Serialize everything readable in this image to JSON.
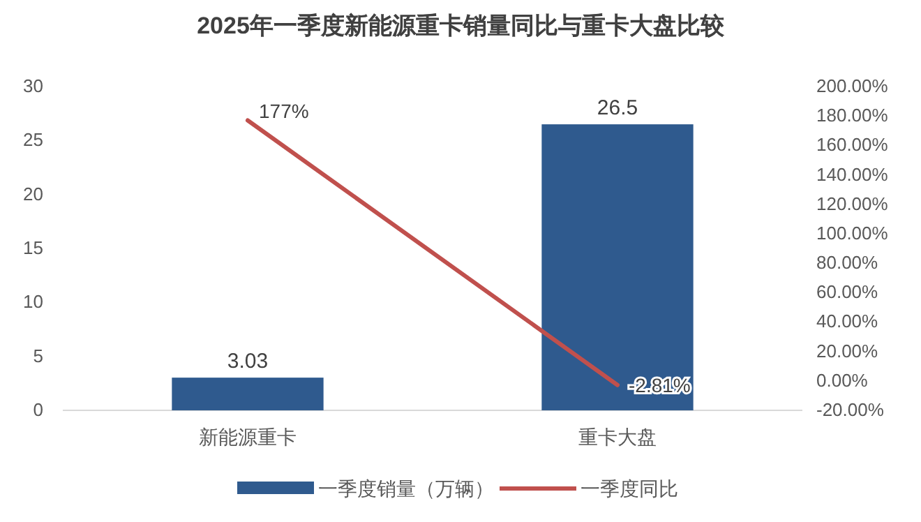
{
  "chart_data": {
    "type": "bar",
    "title": "2025年一季度新能源重卡销量同比与重卡大盘比较",
    "categories": [
      "新能源重卡",
      "重卡大盘"
    ],
    "series": [
      {
        "name": "一季度销量（万辆）",
        "color": "#2f5a8e",
        "values": [
          3.03,
          26.5
        ],
        "value_labels": [
          "3.03",
          "26.5"
        ]
      },
      {
        "name": "一季度同比",
        "type": "line",
        "axis": "y2",
        "color": "#c0504d",
        "values": [
          177,
          -2.81
        ],
        "value_labels": [
          "177%",
          "-2.81%"
        ]
      }
    ],
    "ylim": [
      0,
      30
    ],
    "yticks": [
      0,
      5,
      10,
      15,
      20,
      25,
      30
    ],
    "y2lim": [
      -20,
      200
    ],
    "y2ticks": [
      {
        "value": -20,
        "label": "-20.00%"
      },
      {
        "value": 0,
        "label": "0.00%"
      },
      {
        "value": 20,
        "label": "20.00%"
      },
      {
        "value": 40,
        "label": "40.00%"
      },
      {
        "value": 60,
        "label": "60.00%"
      },
      {
        "value": 80,
        "label": "80.00%"
      },
      {
        "value": 100,
        "label": "100.00%"
      },
      {
        "value": 120,
        "label": "120.00%"
      },
      {
        "value": 140,
        "label": "140.00%"
      },
      {
        "value": 160,
        "label": "160.00%"
      },
      {
        "value": 180,
        "label": "180.00%"
      },
      {
        "value": 200,
        "label": "200.00%"
      }
    ],
    "legend": "bottom"
  }
}
